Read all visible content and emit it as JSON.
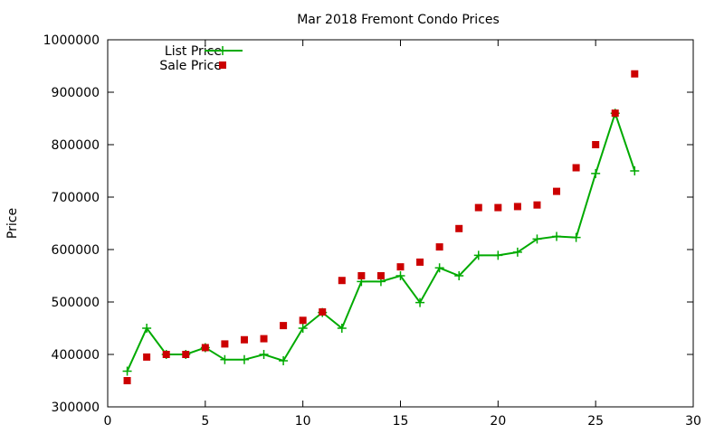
{
  "chart_data": {
    "type": "line",
    "title": "Mar 2018 Fremont Condo Prices",
    "xlabel": "",
    "ylabel": "Price",
    "xlim": [
      0,
      30
    ],
    "ylim": [
      300000,
      1000000
    ],
    "x_ticks": [
      0,
      5,
      10,
      15,
      20,
      25,
      30
    ],
    "y_ticks": [
      300000,
      400000,
      500000,
      600000,
      700000,
      800000,
      900000,
      1000000
    ],
    "grid": false,
    "legend_position": "top-left",
    "series": [
      {
        "name": "List Price",
        "style": "lines+points",
        "color": "#00aa00",
        "x": [
          1,
          2,
          3,
          4,
          5,
          6,
          7,
          8,
          9,
          10,
          11,
          12,
          13,
          14,
          15,
          16,
          17,
          18,
          19,
          20,
          21,
          22,
          23,
          24,
          25,
          26,
          27
        ],
        "y": [
          368000,
          450000,
          400000,
          400000,
          413000,
          390000,
          390000,
          400000,
          388000,
          450000,
          480000,
          450000,
          539000,
          539000,
          550000,
          499000,
          565000,
          550000,
          589000,
          589000,
          595000,
          620000,
          625000,
          623000,
          745000,
          860000,
          750000
        ]
      },
      {
        "name": "Sale Price",
        "style": "points",
        "color": "#cc0000",
        "x": [
          1,
          2,
          3,
          4,
          5,
          6,
          7,
          8,
          9,
          10,
          11,
          12,
          13,
          14,
          15,
          16,
          17,
          18,
          19,
          20,
          21,
          22,
          23,
          24,
          25,
          26,
          27
        ],
        "y": [
          350000,
          395000,
          400000,
          400000,
          413000,
          420000,
          428000,
          430000,
          455000,
          465000,
          481000,
          541000,
          550000,
          550000,
          567000,
          576000,
          605000,
          640000,
          680000,
          680000,
          682000,
          685000,
          711000,
          756000,
          800000,
          860000,
          935000
        ]
      }
    ]
  }
}
